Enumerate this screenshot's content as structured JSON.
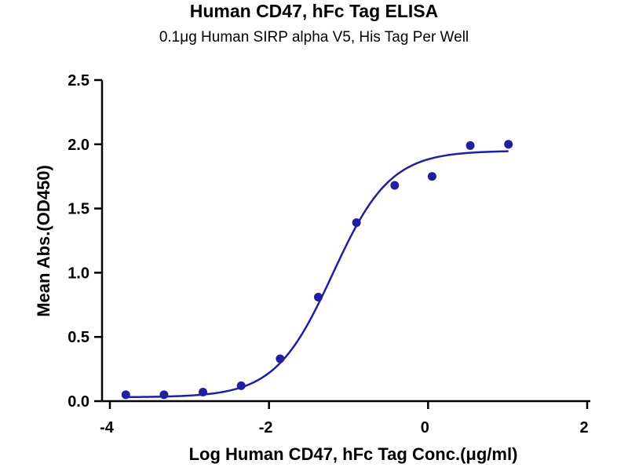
{
  "chart_data": {
    "type": "scatter",
    "title": "Human CD47, hFc Tag ELISA",
    "subtitle": "0.1μg Human SIRP alpha V5, His Tag Per Well",
    "xlabel": "Log Human CD47, hFc Tag Conc.(μg/ml)",
    "ylabel": "Mean Abs.(OD450)",
    "xlim": [
      -4,
      2
    ],
    "ylim": [
      0,
      2.5
    ],
    "x_ticks": [
      -4,
      -2,
      0,
      2
    ],
    "x_tick_labels": [
      "-4",
      "-2",
      "0",
      "2"
    ],
    "y_ticks": [
      0,
      0.5,
      1.0,
      1.5,
      2.0,
      2.5
    ],
    "y_tick_labels": [
      "0.0",
      "0.5",
      "1.0",
      "1.5",
      "2.0",
      "2.5"
    ],
    "grid": false,
    "legend": "none",
    "series": [
      {
        "points": [
          {
            "x": -3.8,
            "y": 0.05
          },
          {
            "x": -3.32,
            "y": 0.05
          },
          {
            "x": -2.83,
            "y": 0.07
          },
          {
            "x": -2.35,
            "y": 0.12
          },
          {
            "x": -1.86,
            "y": 0.33
          },
          {
            "x": -1.38,
            "y": 0.81
          },
          {
            "x": -0.9,
            "y": 1.39
          },
          {
            "x": -0.42,
            "y": 1.68
          },
          {
            "x": 0.05,
            "y": 1.75
          },
          {
            "x": 0.53,
            "y": 1.99
          },
          {
            "x": 1.01,
            "y": 2.0
          }
        ],
        "fit": {
          "model": "4PL",
          "bottom": 0.03,
          "top": 1.95,
          "logEC50": -1.2,
          "hill": 1.2,
          "x_range": [
            -3.8,
            1.01
          ]
        },
        "color": "#1f1fa0"
      }
    ]
  }
}
